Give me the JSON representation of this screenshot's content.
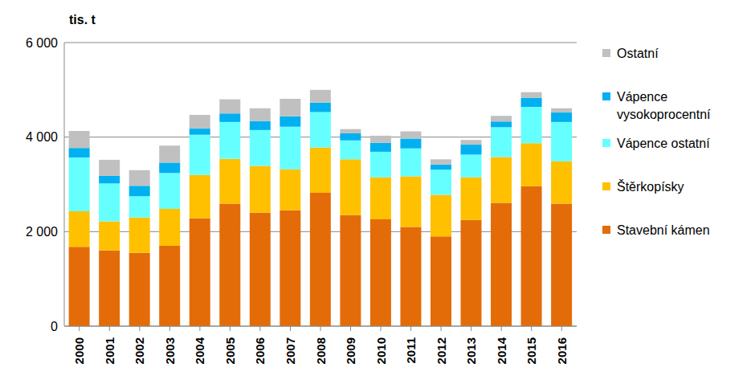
{
  "chart_data": {
    "type": "bar",
    "y_label": "tis. t",
    "stacked": true,
    "grid": true,
    "legend": "right",
    "categories": [
      "2000",
      "2001",
      "2002",
      "2003",
      "2004",
      "2005",
      "2006",
      "2007",
      "2008",
      "2009",
      "2010",
      "2011",
      "2012",
      "2013",
      "2014",
      "2015",
      "2016"
    ],
    "ylim": [
      0,
      6000
    ],
    "yticks": [
      0,
      {
        "value": 2000,
        "label": "2 000"
      },
      {
        "value": 4000,
        "label": "4 000"
      },
      {
        "value": 6000,
        "label": "6 000"
      }
    ],
    "series": [
      {
        "name": "Stavební kámen",
        "color": "#E36C09",
        "values": [
          1680,
          1600,
          1550,
          1700,
          2280,
          2590,
          2400,
          2450,
          2820,
          2350,
          2260,
          2100,
          1900,
          2250,
          2610,
          2960,
          2590
        ]
      },
      {
        "name": "Štěrkopísky",
        "color": "#FFC000",
        "values": [
          750,
          620,
          750,
          780,
          920,
          950,
          990,
          870,
          960,
          1180,
          890,
          1070,
          880,
          900,
          970,
          910,
          900
        ]
      },
      {
        "name": "Vápence ostatní",
        "color": "#66FFFF",
        "values": [
          1140,
          800,
          450,
          760,
          850,
          780,
          760,
          900,
          750,
          400,
          540,
          590,
          530,
          480,
          630,
          770,
          830
        ]
      },
      {
        "name": "Vápence vysokoprocentní",
        "color": "#00B0F0",
        "values": [
          200,
          160,
          220,
          220,
          130,
          180,
          190,
          220,
          200,
          150,
          190,
          210,
          110,
          210,
          120,
          190,
          200
        ]
      },
      {
        "name": "Ostatní",
        "color": "#C0C0C0",
        "values": [
          360,
          340,
          330,
          360,
          290,
          300,
          270,
          370,
          270,
          90,
          150,
          150,
          110,
          100,
          120,
          120,
          90
        ]
      }
    ]
  }
}
